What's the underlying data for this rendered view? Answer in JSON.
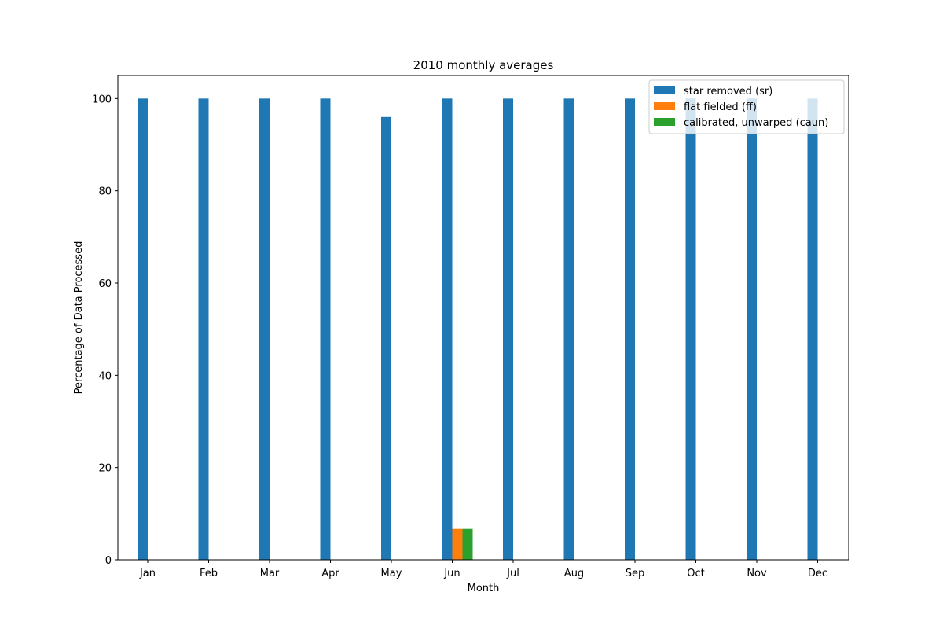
{
  "chart_data": {
    "type": "bar",
    "title": "2010 monthly averages",
    "xlabel": "Month",
    "ylabel": "Percentage of Data Processed",
    "categories": [
      "Jan",
      "Feb",
      "Mar",
      "Apr",
      "May",
      "Jun",
      "Jul",
      "Aug",
      "Sep",
      "Oct",
      "Nov",
      "Dec"
    ],
    "series": [
      {
        "name": "star removed (sr)",
        "color": "#1f77b4",
        "values": [
          100,
          100,
          100,
          100,
          96,
          100,
          100,
          100,
          100,
          100,
          100,
          100
        ]
      },
      {
        "name": "flat fielded (ff)",
        "color": "#ff7f0e",
        "values": [
          0,
          0,
          0,
          0,
          0,
          6.7,
          0,
          0,
          0,
          0,
          0,
          0
        ]
      },
      {
        "name": "calibrated, unwarped (caun)",
        "color": "#2ca02c",
        "values": [
          0,
          0,
          0,
          0,
          0,
          6.7,
          0,
          0,
          0,
          0,
          0,
          0
        ]
      }
    ],
    "ylim": [
      0,
      105
    ],
    "yticks": [
      0,
      20,
      40,
      60,
      80,
      100
    ],
    "grid": false,
    "legend_position": "top-right"
  }
}
